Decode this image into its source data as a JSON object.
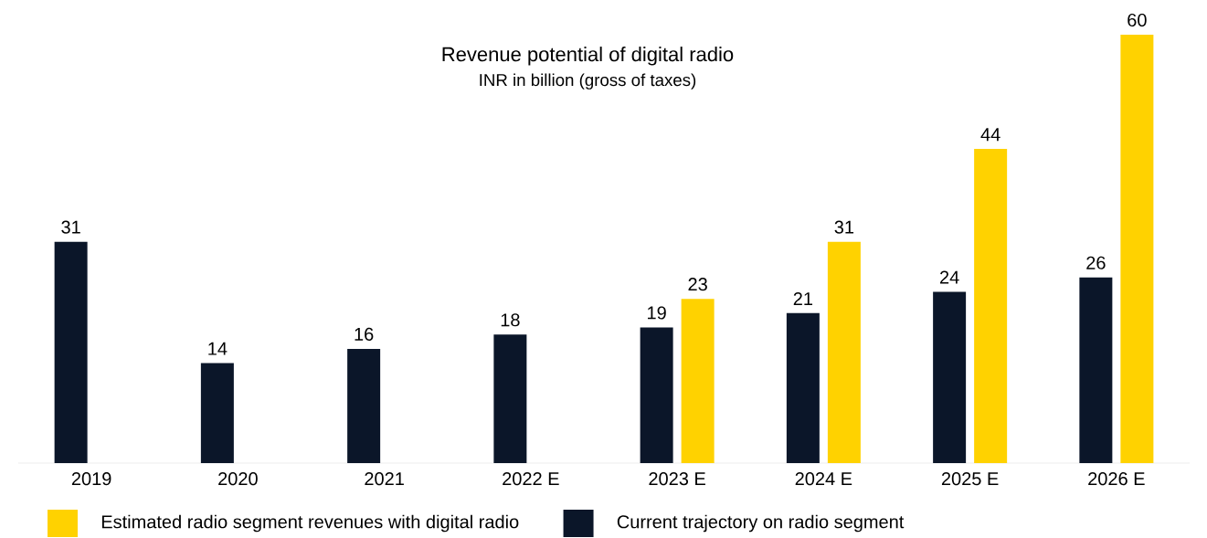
{
  "chart_data": {
    "type": "bar",
    "title": "Revenue potential of digital radio",
    "subtitle": "INR in billion (gross of taxes)",
    "categories": [
      "2019",
      "2020",
      "2021",
      "2022 E",
      "2023 E",
      "2024 E",
      "2025 E",
      "2026 E"
    ],
    "series": [
      {
        "name": "Estimated radio segment revenues with digital radio",
        "color": "#ffd200",
        "values": [
          null,
          null,
          null,
          null,
          23,
          31,
          44,
          60
        ]
      },
      {
        "name": "Current trajectory on radio segment",
        "color": "#0b1629",
        "values": [
          31,
          14,
          16,
          18,
          19,
          21,
          24,
          26
        ]
      }
    ],
    "data_labels": true,
    "legend": "bottom"
  }
}
